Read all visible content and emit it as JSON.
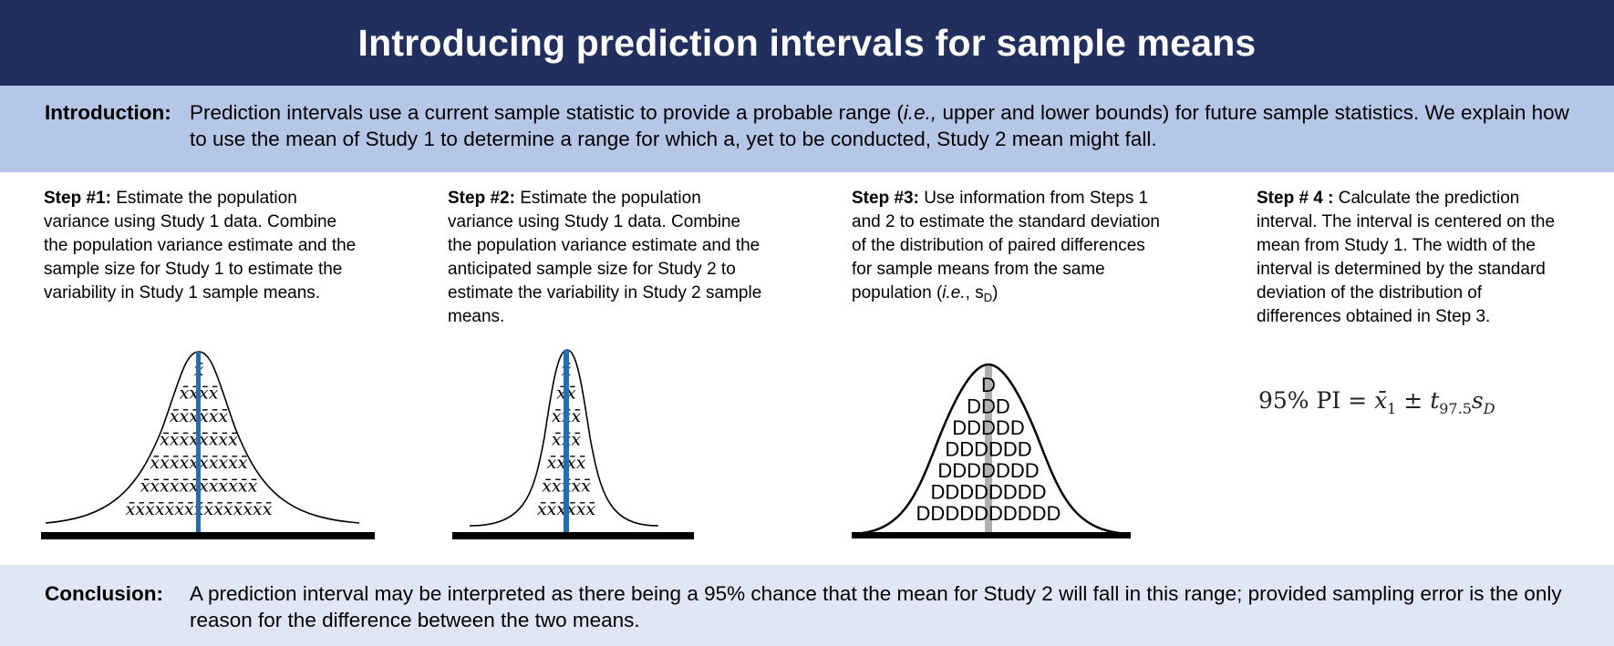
{
  "title": "Introducing prediction intervals for sample means",
  "introduction": {
    "label": "Introduction:",
    "text_before": "Prediction intervals use a current sample statistic to provide a probable range (",
    "text_ie": "i.e.,",
    "text_after": " upper and lower bounds) for future sample statistics. We explain how to use the mean of Study 1 to determine a range for which a, yet to be conducted, Study 2 mean might fall."
  },
  "steps": [
    {
      "label": "Step #1:",
      "text": " Estimate the population variance using Study 1 data. Combine the population variance estimate and the sample size for Study 1 to estimate the variability in Study 1 sample means."
    },
    {
      "label": "Step #2:",
      "text": " Estimate the population variance using Study 1 data. Combine the population variance estimate and the anticipated sample size for Study 2 to estimate the variability in Study 2 sample means."
    },
    {
      "label": "Step #3:",
      "text_before": " Use information from Steps 1 and 2 to estimate the standard deviation of the distribution of paired differences for sample means from the same population (",
      "text_ie": "i.e.",
      "text_comma": ", s",
      "text_sub": "D",
      "text_after": ")"
    },
    {
      "label": "Step # 4 :",
      "text": " Calculate the prediction interval. The interval is centered on the mean from Study 1. The width of the interval is determined by the standard deviation of the distribution of differences obtained in Step 3."
    }
  ],
  "diagram1": {
    "rows": [
      "x̄",
      "x̄x̄x̄x̄",
      "x̄x̄x̄x̄x̄x̄",
      "x̄x̄x̄x̄x̄x̄x̄x̄",
      "x̄x̄x̄x̄x̄x̄x̄x̄x̄x̄",
      "x̄x̄x̄x̄x̄x̄x̄x̄x̄x̄x̄x̄",
      "x̄x̄x̄x̄x̄x̄x̄x̄x̄x̄x̄x̄x̄x̄x̄"
    ],
    "line_color": "#1f6fb5"
  },
  "diagram2": {
    "rows": [
      "x̄",
      "x̄x̄",
      "x̄x̄x̄",
      "x̄x̄x̄",
      "x̄x̄x̄x̄",
      "x̄x̄x̄x̄x̄",
      "x̄x̄x̄x̄x̄x̄"
    ],
    "line_color": "#1f6fb5"
  },
  "diagram3": {
    "rows": [
      "D",
      "DDD",
      "DDDDD",
      "DDDDDD",
      "DDDDDDD",
      "DDDDDDDD",
      "DDDDDDDDDD"
    ],
    "line_color": "#b0b0b0"
  },
  "formula": {
    "prefix": "95% PI = ",
    "mean": "x̄",
    "mean_sub": "1",
    "pm": " ± ",
    "t": "t",
    "t_sub": "97.5",
    "s": "s",
    "s_sub": "D"
  },
  "conclusion": {
    "label": "Conclusion:",
    "text": "A prediction interval may be interpreted as there being a 95% chance that the mean for Study 2 will fall in this range; provided sampling error is the only reason for the difference between the two means."
  }
}
